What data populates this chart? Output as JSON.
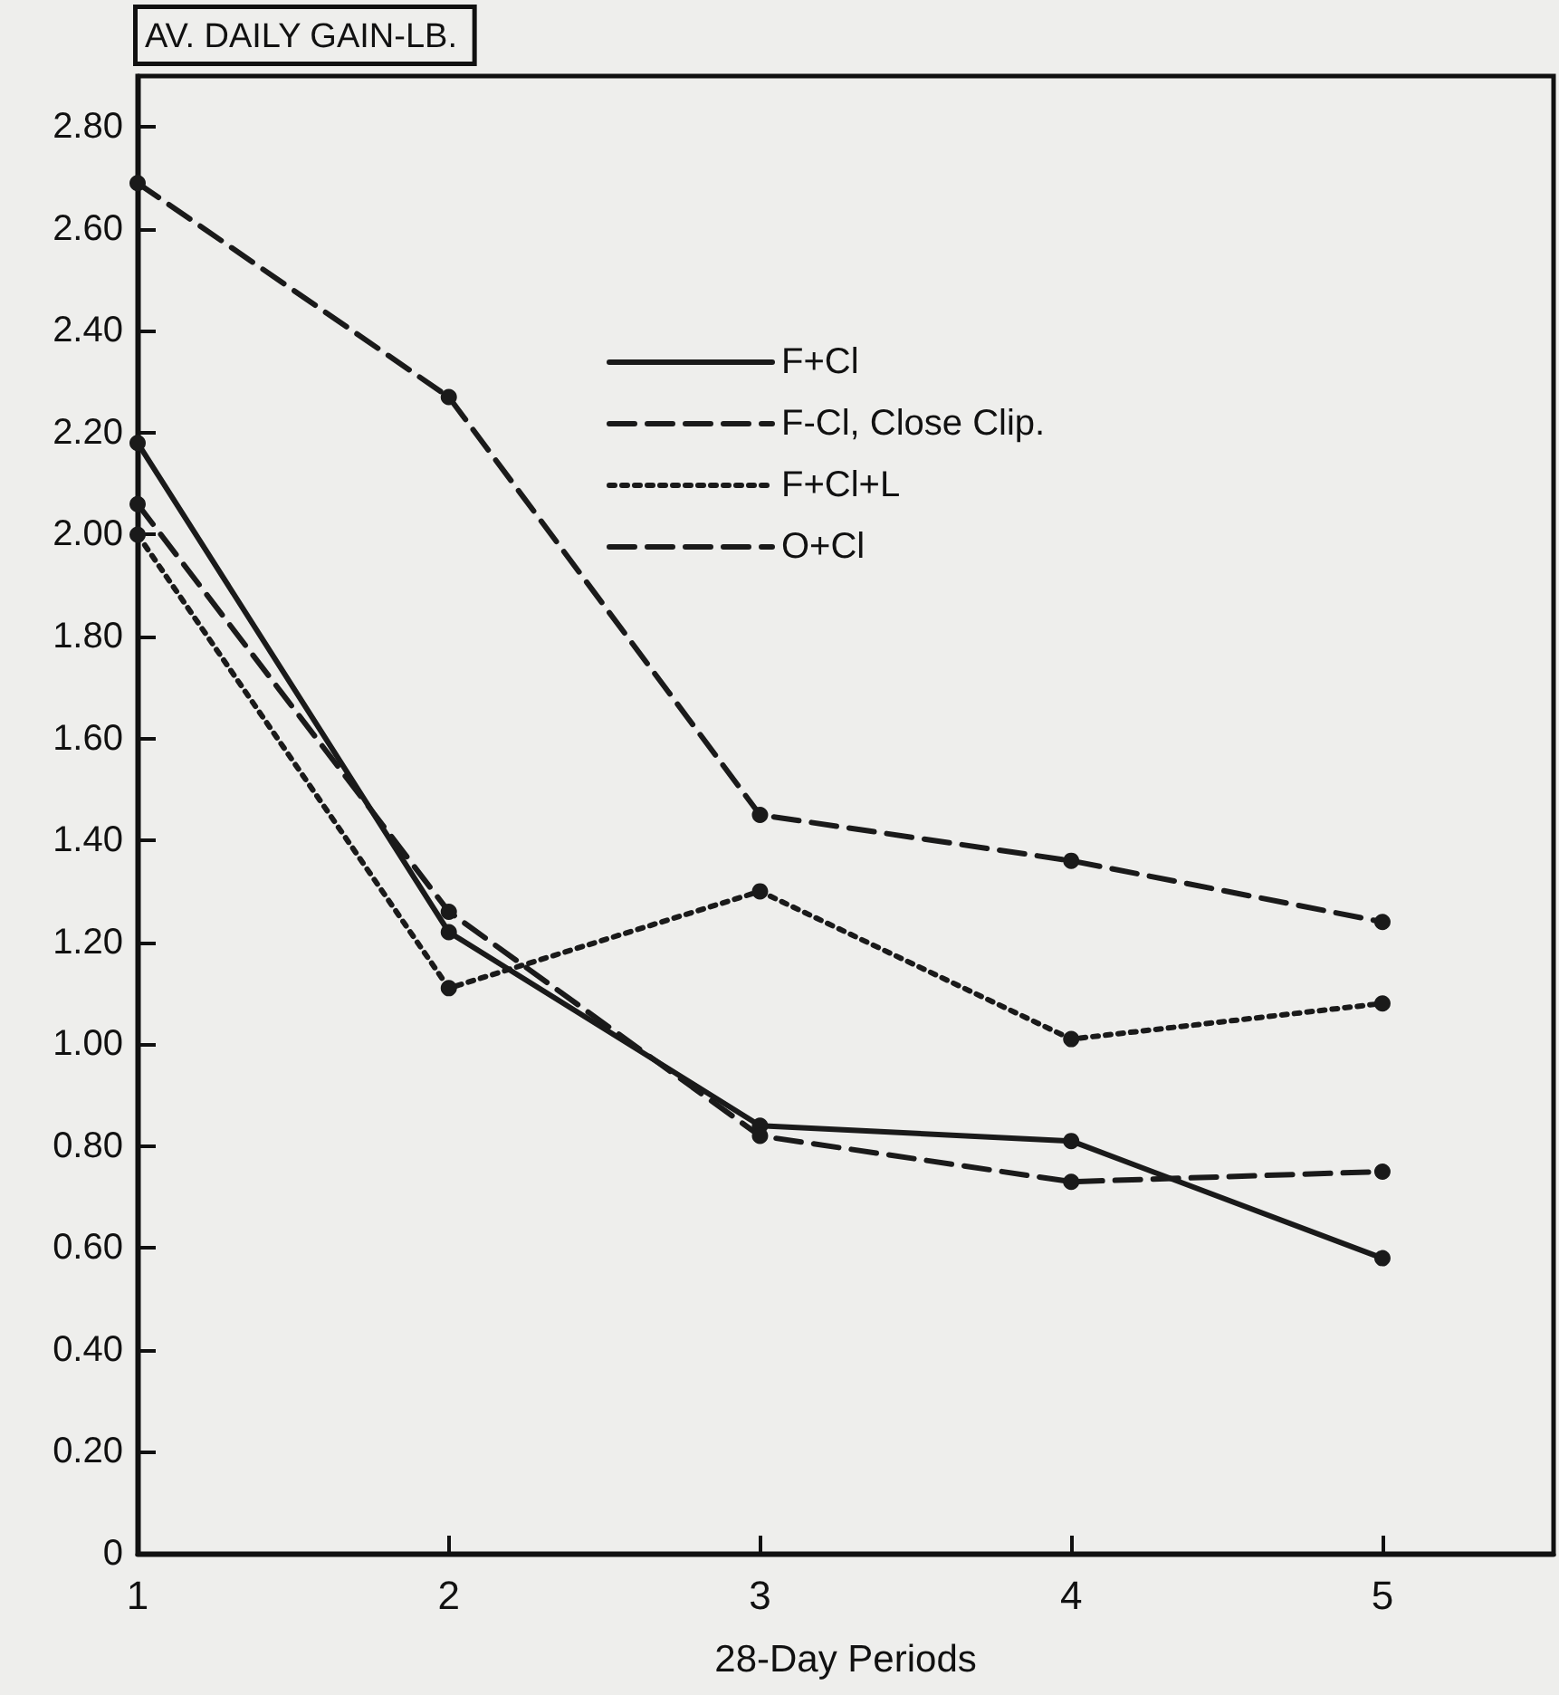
{
  "chart_data": {
    "type": "line",
    "xlabel": "28-Day Periods",
    "ylabel": "AV. DAILY GAIN-LB.",
    "x": [
      1,
      2,
      3,
      4,
      5
    ],
    "xlim": [
      1,
      5.55
    ],
    "xticks": [
      1,
      2,
      3,
      4,
      5
    ],
    "ylim": [
      0,
      2.9
    ],
    "yticks": [
      0,
      {
        "value": 0.2,
        "label": "0.20"
      },
      {
        "value": 0.4,
        "label": "0.40"
      },
      {
        "value": 0.6,
        "label": "0.60"
      },
      {
        "value": 0.8,
        "label": "0.80"
      },
      {
        "value": 1,
        "label": "1.00"
      },
      {
        "value": 1.2,
        "label": "1.20"
      },
      {
        "value": 1.4,
        "label": "1.40"
      },
      {
        "value": 1.6,
        "label": "1.60"
      },
      {
        "value": 1.8,
        "label": "1.80"
      },
      {
        "value": 2,
        "label": "2.00"
      },
      {
        "value": 2.2,
        "label": "2.20"
      },
      {
        "value": 2.4,
        "label": "2.40"
      },
      {
        "value": 2.6,
        "label": "2.60"
      },
      {
        "value": 2.8,
        "label": "2.80"
      }
    ],
    "series": [
      {
        "name": "F+Cl",
        "color": "#1a1a1a",
        "line_style": "solid",
        "values": [
          2.18,
          1.22,
          0.84,
          0.81,
          0.58
        ]
      },
      {
        "name": "F-Cl, Close Clip.",
        "color": "#1a1a1a",
        "line_style": "dashed",
        "values": [
          2.06,
          1.26,
          0.82,
          0.73,
          0.75
        ]
      },
      {
        "name": "F+Cl+L",
        "color": "#1a1a1a",
        "line_style": "dotted",
        "values": [
          2.0,
          1.11,
          1.3,
          1.01,
          1.08
        ]
      },
      {
        "name": "O+Cl",
        "color": "#1a1a1a",
        "line_style": "dashed",
        "values": [
          2.69,
          2.27,
          1.45,
          1.36,
          1.24
        ]
      }
    ],
    "marker": "circle",
    "legend": "top",
    "grid": false
  }
}
